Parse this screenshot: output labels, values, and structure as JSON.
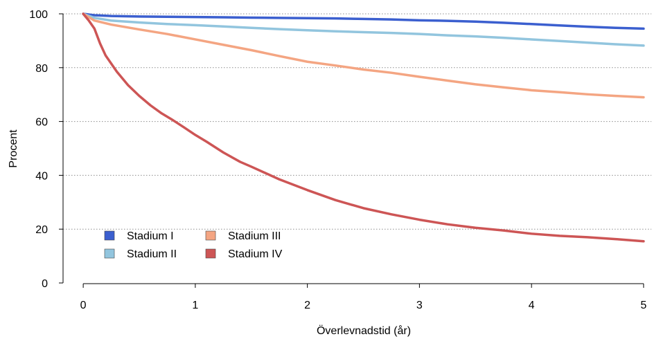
{
  "chart_data": {
    "type": "line",
    "xlabel": "Överlevnadstid (år)",
    "ylabel": "Procent",
    "xlim": [
      -0.18,
      5.18
    ],
    "ylim": [
      0,
      100
    ],
    "x_ticks": [
      0,
      1,
      2,
      3,
      4,
      5
    ],
    "y_ticks": [
      0,
      20,
      40,
      60,
      80,
      100
    ],
    "grid": "horizontal-dotted",
    "legend_position": "bottom-left",
    "series": [
      {
        "name": "Stadium I",
        "color": "#3b5fcf",
        "x": [
          0,
          0.1,
          0.25,
          0.5,
          0.75,
          1,
          1.25,
          1.5,
          1.75,
          2,
          2.25,
          2.5,
          2.75,
          3,
          3.25,
          3.5,
          3.75,
          4,
          4.25,
          4.5,
          4.75,
          5
        ],
        "y": [
          100,
          99.5,
          99.2,
          99.0,
          98.9,
          98.8,
          98.7,
          98.6,
          98.5,
          98.4,
          98.3,
          98.1,
          97.9,
          97.6,
          97.4,
          97.1,
          96.7,
          96.2,
          95.7,
          95.2,
          94.8,
          94.5
        ]
      },
      {
        "name": "Stadium II",
        "color": "#92c5de",
        "x": [
          0,
          0.1,
          0.25,
          0.5,
          0.75,
          1,
          1.25,
          1.5,
          1.75,
          2,
          2.25,
          2.5,
          2.75,
          3,
          3.25,
          3.5,
          3.75,
          4,
          4.25,
          4.5,
          4.75,
          5
        ],
        "y": [
          100,
          98.5,
          97.5,
          96.8,
          96.2,
          95.8,
          95.3,
          94.8,
          94.3,
          93.9,
          93.5,
          93.2,
          92.9,
          92.5,
          92.0,
          91.6,
          91.1,
          90.5,
          89.9,
          89.3,
          88.7,
          88.2
        ]
      },
      {
        "name": "Stadium III",
        "color": "#f4a582",
        "x": [
          0,
          0.1,
          0.25,
          0.5,
          0.75,
          1,
          1.25,
          1.5,
          1.75,
          2,
          2.25,
          2.5,
          2.75,
          3,
          3.25,
          3.5,
          3.75,
          4,
          4.25,
          4.5,
          4.75,
          5
        ],
        "y": [
          100,
          97.5,
          96.0,
          94.2,
          92.5,
          90.5,
          88.5,
          86.5,
          84.3,
          82.2,
          80.8,
          79.3,
          78.1,
          76.6,
          75.2,
          73.8,
          72.7,
          71.6,
          70.9,
          70.1,
          69.5,
          69.0
        ]
      },
      {
        "name": "Stadium IV",
        "color": "#cd5555",
        "x": [
          0,
          0.05,
          0.1,
          0.15,
          0.2,
          0.3,
          0.4,
          0.5,
          0.6,
          0.7,
          0.8,
          0.9,
          1,
          1.1,
          1.25,
          1.4,
          1.5,
          1.75,
          2,
          2.25,
          2.5,
          2.75,
          3,
          3.25,
          3.5,
          3.75,
          4,
          4.25,
          4.5,
          4.75,
          5
        ],
        "y": [
          100,
          97.5,
          94.5,
          89.0,
          84.5,
          78.5,
          73.5,
          69.5,
          66.0,
          63.0,
          60.5,
          57.8,
          55.0,
          52.5,
          48.5,
          45.0,
          43.2,
          38.5,
          34.5,
          30.8,
          27.8,
          25.5,
          23.5,
          21.8,
          20.5,
          19.5,
          18.3,
          17.5,
          17.0,
          16.3,
          15.5
        ]
      }
    ]
  }
}
